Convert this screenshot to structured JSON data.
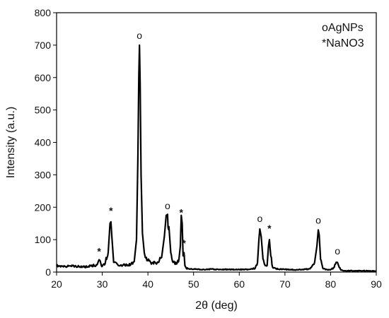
{
  "chart_data": {
    "type": "line",
    "xlabel": "2θ (deg)",
    "ylabel": "Intensity (a.u.)",
    "xlim": [
      20,
      90
    ],
    "ylim": [
      0,
      800
    ],
    "xticks": [
      20,
      30,
      40,
      50,
      60,
      70,
      80,
      90
    ],
    "yticks": [
      0,
      100,
      200,
      300,
      400,
      500,
      600,
      700,
      800
    ],
    "grid": false,
    "legend_position": "top-right",
    "legend": [
      {
        "marker": "o",
        "text": "AgNPs"
      },
      {
        "marker": "*",
        "text": "NaNO3"
      }
    ],
    "series": [
      {
        "x": [
          20,
          21,
          22,
          23,
          24,
          25,
          26,
          27,
          28,
          28.8,
          29.3,
          29.8,
          30.5,
          31.3,
          31.7,
          31.9,
          32.1,
          32.5,
          33.5,
          34.5,
          35.5,
          36.3,
          37.0,
          37.5,
          37.8,
          38.0,
          38.15,
          38.3,
          38.5,
          38.8,
          39.2,
          40.0,
          41.0,
          42.0,
          43.0,
          43.6,
          44.0,
          44.3,
          44.6,
          45.0,
          45.5,
          46.2,
          46.8,
          47.1,
          47.3,
          47.5,
          47.7,
          47.9,
          48.1,
          48.4,
          49.0,
          50.0,
          52.0,
          54.0,
          56.0,
          58.0,
          60.0,
          62.0,
          63.5,
          64.0,
          64.3,
          64.5,
          64.8,
          65.2,
          65.7,
          66.1,
          66.4,
          66.6,
          66.9,
          67.3,
          68.0,
          70.0,
          72.0,
          74.0,
          75.5,
          76.5,
          77.0,
          77.3,
          77.5,
          77.8,
          78.3,
          79.0,
          80.0,
          80.8,
          81.2,
          81.5,
          81.8,
          82.3,
          83.0,
          85.0,
          87.0,
          89.0,
          90.0
        ],
        "y": [
          20,
          18,
          17,
          19,
          18,
          17,
          16,
          18,
          20,
          22,
          38,
          20,
          22,
          60,
          150,
          155,
          110,
          30,
          20,
          22,
          22,
          25,
          32,
          100,
          350,
          600,
          700,
          580,
          300,
          120,
          60,
          35,
          28,
          28,
          45,
          110,
          175,
          178,
          140,
          60,
          30,
          25,
          40,
          80,
          175,
          150,
          50,
          60,
          20,
          12,
          10,
          9,
          8,
          9,
          8,
          8,
          8,
          8,
          12,
          30,
          100,
          133,
          110,
          40,
          20,
          20,
          80,
          100,
          50,
          15,
          10,
          8,
          7,
          8,
          10,
          30,
          80,
          130,
          115,
          40,
          12,
          8,
          7,
          15,
          30,
          30,
          18,
          6,
          4,
          4,
          4,
          3,
          3
        ]
      }
    ],
    "annotations": [
      {
        "text": "*",
        "x": 29.3,
        "y": 45
      },
      {
        "text": "*",
        "x": 31.9,
        "y": 170
      },
      {
        "text": "o",
        "x": 38.15,
        "y": 715
      },
      {
        "text": "o",
        "x": 44.3,
        "y": 190
      },
      {
        "text": "*",
        "x": 47.3,
        "y": 165
      },
      {
        "text": "*",
        "x": 47.9,
        "y": 70
      },
      {
        "text": "o",
        "x": 64.5,
        "y": 150
      },
      {
        "text": "*",
        "x": 66.6,
        "y": 115
      },
      {
        "text": "o",
        "x": 77.3,
        "y": 145
      },
      {
        "text": "o",
        "x": 81.5,
        "y": 50
      }
    ]
  }
}
